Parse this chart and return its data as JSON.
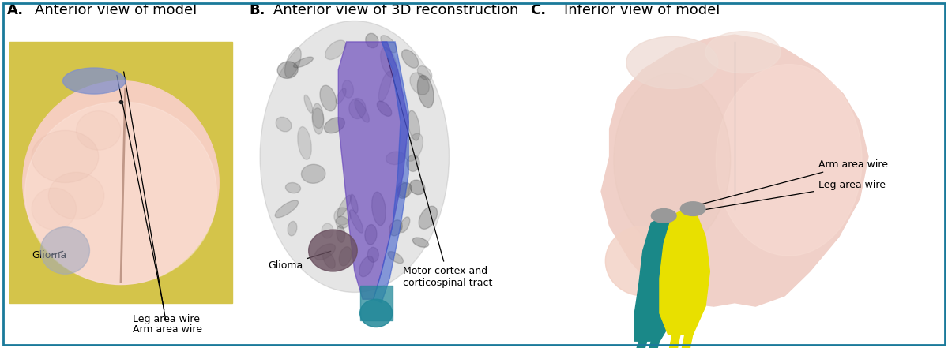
{
  "figsize": [
    12.0,
    4.41
  ],
  "dpi": 100,
  "background_color": "#ffffff",
  "panel_label_fontsize": 13,
  "annotation_fontsize": 9,
  "border_color": "#1a7a9a",
  "border_linewidth": 2.0,
  "panels": {
    "A": {
      "title_bold": "A.",
      "title_rest": " Anterior view of model",
      "photo_bg": "#d4c44a",
      "brain_base": "#f5cebe",
      "brain_highlight": "#fde8e0",
      "brain_shadow": "#e8b8a4",
      "glioma_color": "#a0a8c0",
      "wire_color": "#8090cc"
    },
    "B": {
      "title_bold": "B.",
      "title_rest": " Anterior view of 3D reconstruction",
      "bg_color": "#ffffff",
      "brain_gray": "#909090",
      "glioma_color": "#705060",
      "tract_purple": "#6644bb",
      "tract_blue": "#4466cc",
      "teal_bottom": "#2299aa"
    },
    "C": {
      "title_bold": "C.",
      "title_rest": " Inferior view of model",
      "bg_color": "#ffffff",
      "brain_base": "#f0d0c8",
      "teal_wire": "#1a8888",
      "yellow_wire": "#e8e000"
    }
  }
}
